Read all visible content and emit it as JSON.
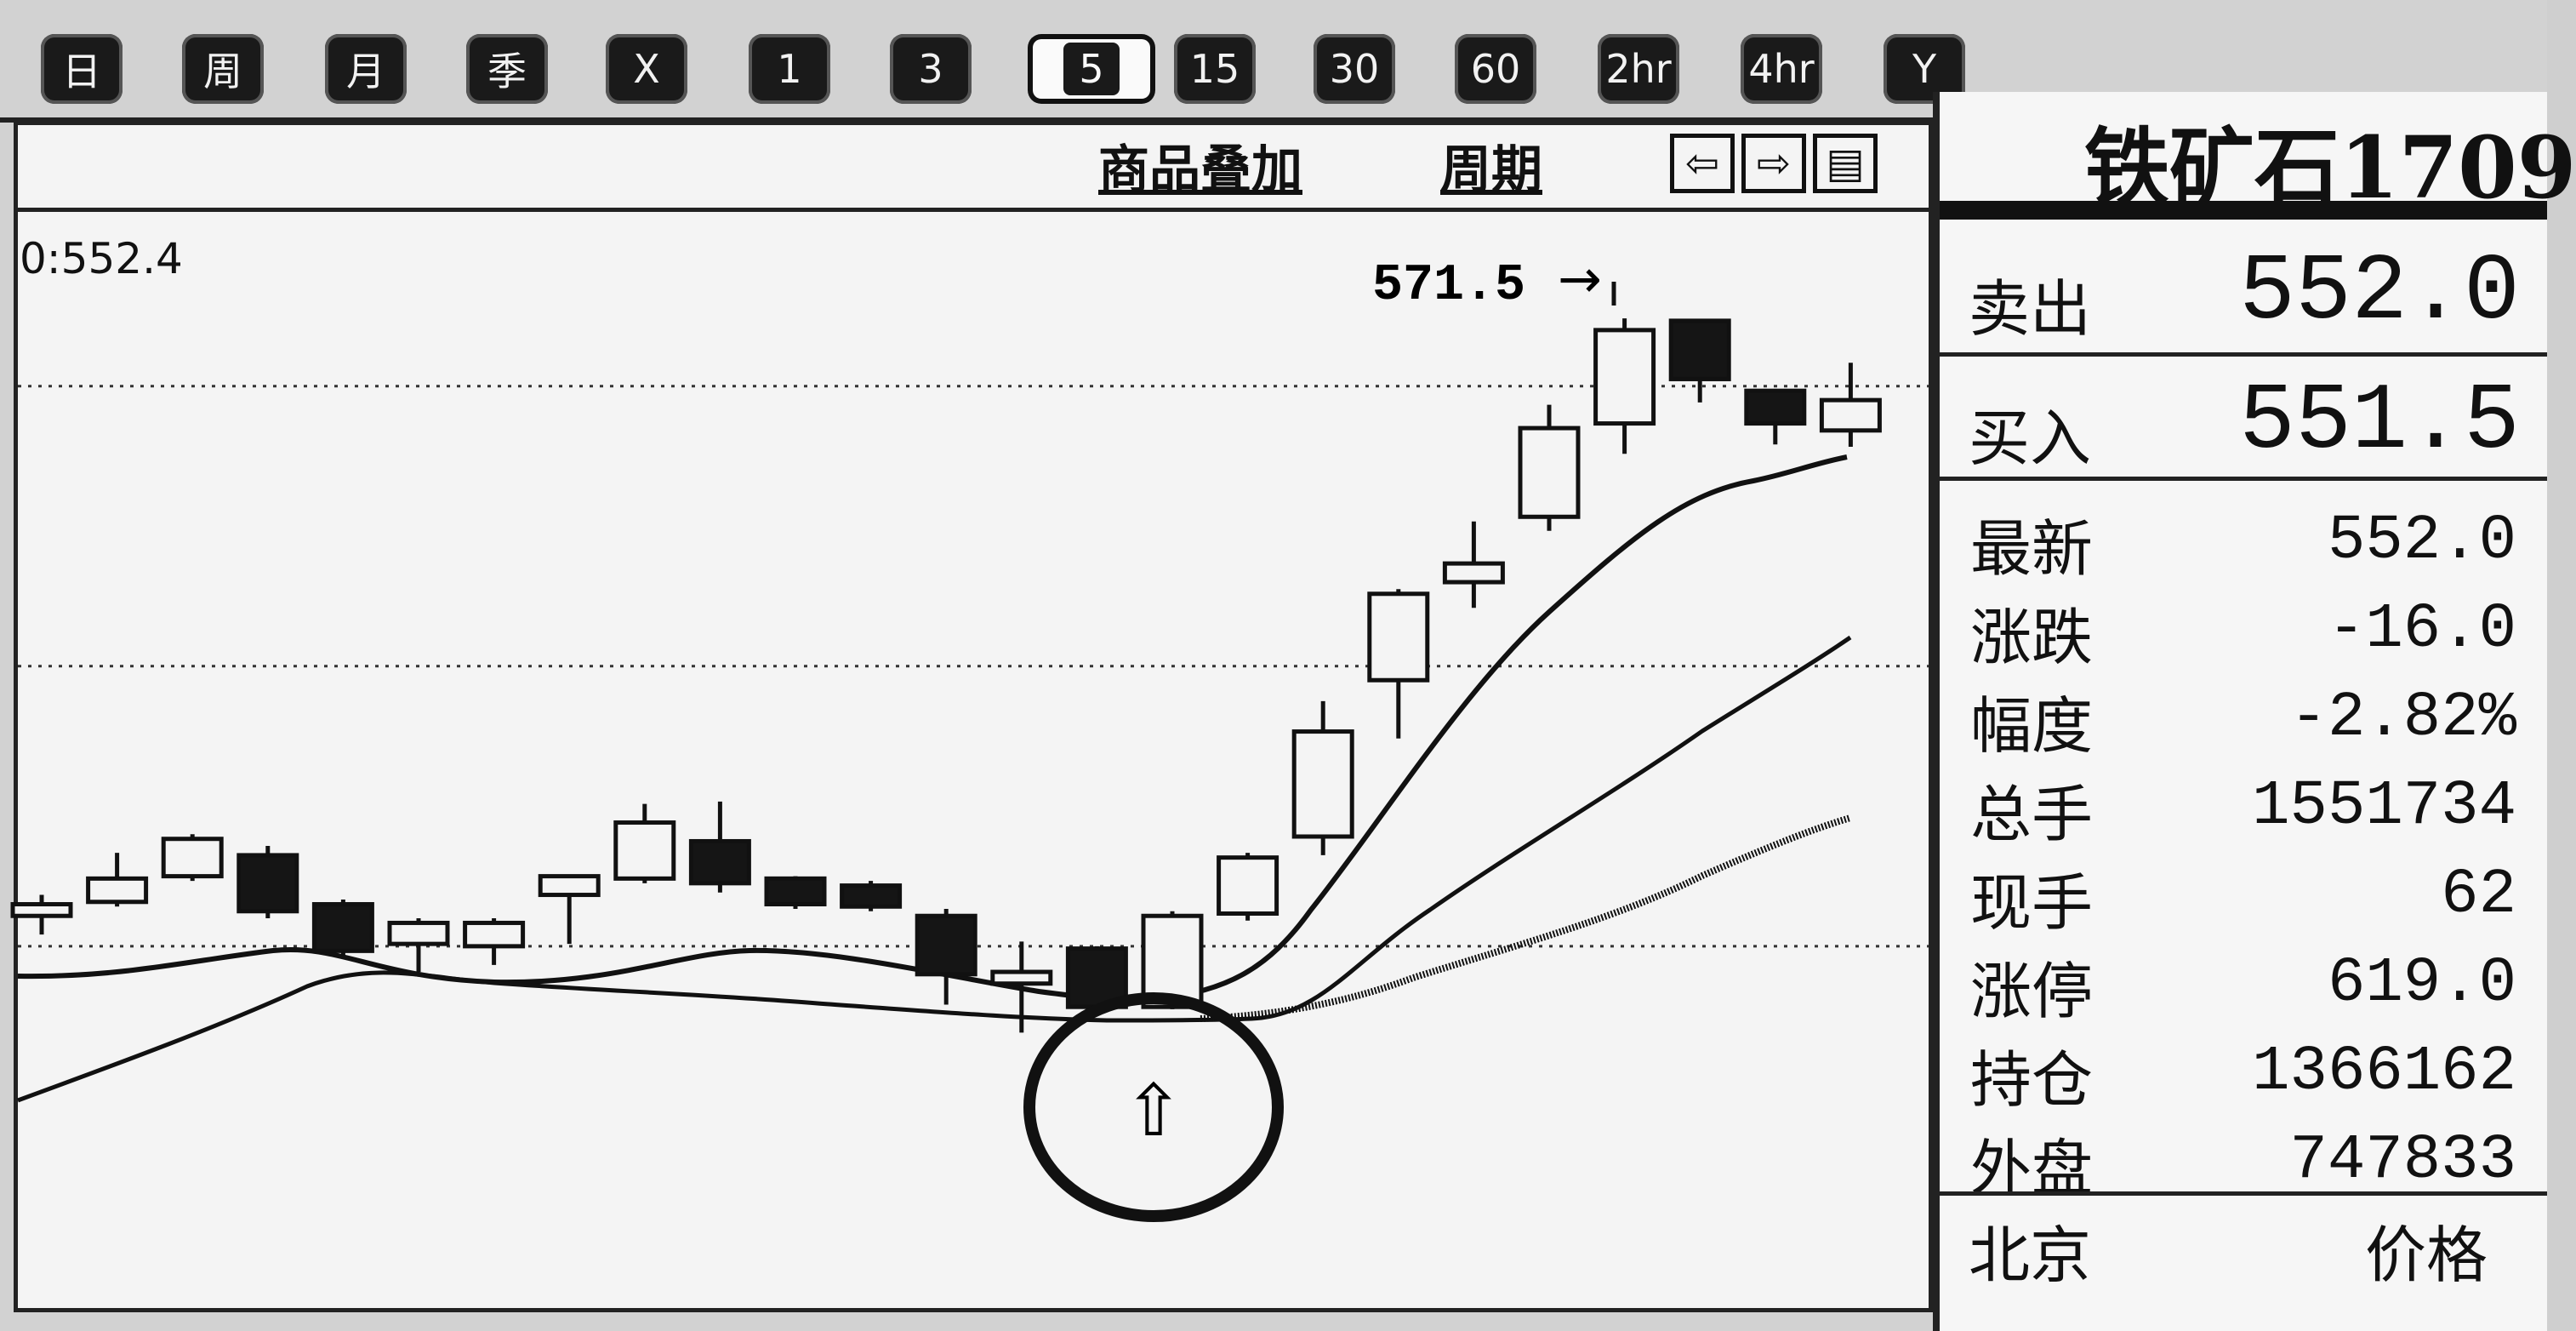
{
  "toolbar": {
    "buttons": [
      "日",
      "周",
      "月",
      "季",
      "X",
      "1",
      "3",
      "5",
      "15",
      "30",
      "60",
      "2hr",
      "4hr",
      "Y"
    ],
    "active_label": "5"
  },
  "chart_header": {
    "overlay_label": "商品叠加",
    "period_label": "周期",
    "nav_left_icon": "⇦",
    "nav_right_icon": "⇨",
    "nav_layout_icon": "▤"
  },
  "chart_readout": "0:552.4",
  "chart_data": {
    "type": "candlestick",
    "annotation_high": "571.5",
    "annotation_arrow": "→",
    "marker_icon": "⇧",
    "y_gridlines_data": [
      568,
      556,
      544
    ],
    "candles": [
      {
        "o": 545.3,
        "c": 545.8,
        "h": 546.2,
        "l": 544.5
      },
      {
        "o": 545.9,
        "c": 546.9,
        "h": 548.0,
        "l": 545.7
      },
      {
        "o": 547.0,
        "c": 548.6,
        "h": 548.8,
        "l": 546.8
      },
      {
        "o": 547.9,
        "c": 545.5,
        "h": 548.3,
        "l": 545.2
      },
      {
        "o": 545.8,
        "c": 543.8,
        "h": 546.0,
        "l": 543.6
      },
      {
        "o": 544.1,
        "c": 545.0,
        "h": 545.2,
        "l": 542.9
      },
      {
        "o": 544.0,
        "c": 545.0,
        "h": 545.2,
        "l": 543.2
      },
      {
        "o": 546.2,
        "c": 547.0,
        "h": 547.0,
        "l": 544.1
      },
      {
        "o": 546.9,
        "c": 549.3,
        "h": 550.1,
        "l": 546.7
      },
      {
        "o": 548.5,
        "c": 546.7,
        "h": 550.2,
        "l": 546.3
      },
      {
        "o": 546.9,
        "c": 545.8,
        "h": 547.0,
        "l": 545.6
      },
      {
        "o": 546.6,
        "c": 545.7,
        "h": 546.8,
        "l": 545.5
      },
      {
        "o": 545.3,
        "c": 542.8,
        "h": 545.6,
        "l": 541.5
      },
      {
        "o": 542.4,
        "c": 542.9,
        "h": 544.2,
        "l": 540.3
      },
      {
        "o": 543.9,
        "c": 541.4,
        "h": 544.0,
        "l": 541.4
      },
      {
        "o": 541.4,
        "c": 545.3,
        "h": 545.5,
        "l": 541.3
      },
      {
        "o": 545.4,
        "c": 547.8,
        "h": 548.0,
        "l": 545.1
      },
      {
        "o": 548.7,
        "c": 553.2,
        "h": 554.5,
        "l": 547.9
      },
      {
        "o": 555.4,
        "c": 559.1,
        "h": 559.3,
        "l": 552.9
      },
      {
        "o": 559.6,
        "c": 560.4,
        "h": 562.2,
        "l": 558.5
      },
      {
        "o": 562.4,
        "c": 566.2,
        "h": 567.2,
        "l": 561.8
      },
      {
        "o": 566.4,
        "c": 570.4,
        "h": 570.9,
        "l": 565.1
      },
      {
        "o": 570.8,
        "c": 568.3,
        "h": 570.8,
        "l": 567.3
      },
      {
        "o": 567.8,
        "c": 566.4,
        "h": 567.8,
        "l": 565.5
      },
      {
        "o": 566.1,
        "c": 567.4,
        "h": 569.0,
        "l": 565.4
      }
    ]
  },
  "quote": {
    "title": "铁矿石1709",
    "sell_label": "卖出",
    "sell_value": "552.0",
    "buy_label": "买入",
    "buy_value": "551.5",
    "rows": [
      {
        "label": "最新",
        "value": "552.0"
      },
      {
        "label": "涨跌",
        "value": "-16.0"
      },
      {
        "label": "幅度",
        "value": "-2.82%"
      },
      {
        "label": "总手",
        "value": "1551734"
      },
      {
        "label": "现手",
        "value": "62"
      },
      {
        "label": "涨停",
        "value": "619.0"
      },
      {
        "label": "持仓",
        "value": "1366162"
      },
      {
        "label": "外盘",
        "value": "747833"
      }
    ],
    "footer_label": "北京",
    "footer_value": "价格"
  }
}
